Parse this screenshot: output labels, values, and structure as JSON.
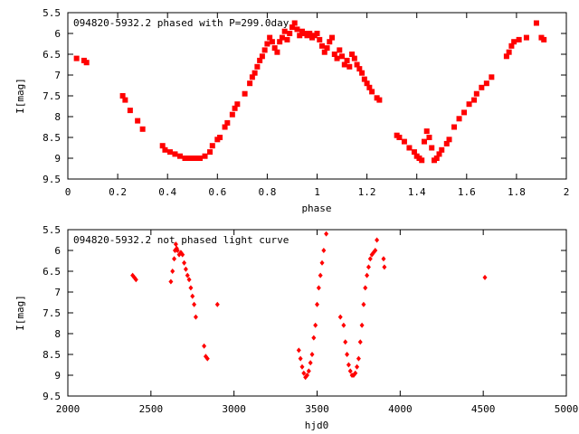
{
  "chart_data": [
    {
      "type": "scatter",
      "title": "094820-5932.2 phased with P=299.0day",
      "xlabel": "phase",
      "ylabel": "I[mag]",
      "xlim": [
        0,
        2
      ],
      "ylim": [
        5.5,
        9.5
      ],
      "y_inverted": true,
      "xticks": [
        "0",
        "0.2",
        "0.4",
        "0.6",
        "0.8",
        "1",
        "1.2",
        "1.4",
        "1.6",
        "1.8",
        "2"
      ],
      "yticks": [
        "5.5",
        "6",
        "6.5",
        "7",
        "7.5",
        "8",
        "8.5",
        "9",
        "9.5"
      ],
      "grid": false,
      "marker": "filled-square",
      "color": "#ff0000",
      "points": [
        [
          0.035,
          6.6
        ],
        [
          0.065,
          6.65
        ],
        [
          0.075,
          6.7
        ],
        [
          0.22,
          7.5
        ],
        [
          0.23,
          7.6
        ],
        [
          0.25,
          7.85
        ],
        [
          0.28,
          8.1
        ],
        [
          0.3,
          8.3
        ],
        [
          0.38,
          8.7
        ],
        [
          0.39,
          8.8
        ],
        [
          0.41,
          8.85
        ],
        [
          0.43,
          8.9
        ],
        [
          0.45,
          8.95
        ],
        [
          0.47,
          9.0
        ],
        [
          0.49,
          9.0
        ],
        [
          0.51,
          9.0
        ],
        [
          0.53,
          9.0
        ],
        [
          0.55,
          8.95
        ],
        [
          0.57,
          8.85
        ],
        [
          0.58,
          8.7
        ],
        [
          0.6,
          8.55
        ],
        [
          0.61,
          8.5
        ],
        [
          0.63,
          8.25
        ],
        [
          0.64,
          8.15
        ],
        [
          0.66,
          7.95
        ],
        [
          0.67,
          7.8
        ],
        [
          0.68,
          7.7
        ],
        [
          0.71,
          7.45
        ],
        [
          0.73,
          7.2
        ],
        [
          0.74,
          7.05
        ],
        [
          0.75,
          6.95
        ],
        [
          0.76,
          6.8
        ],
        [
          0.77,
          6.65
        ],
        [
          0.78,
          6.55
        ],
        [
          0.79,
          6.4
        ],
        [
          0.8,
          6.25
        ],
        [
          0.81,
          6.1
        ],
        [
          0.82,
          6.2
        ],
        [
          0.83,
          6.35
        ],
        [
          0.84,
          6.45
        ],
        [
          0.85,
          6.2
        ],
        [
          0.86,
          6.1
        ],
        [
          0.87,
          5.95
        ],
        [
          0.88,
          6.15
        ],
        [
          0.89,
          6.0
        ],
        [
          0.9,
          5.85
        ],
        [
          0.91,
          5.75
        ],
        [
          0.92,
          5.9
        ],
        [
          0.93,
          6.05
        ],
        [
          0.94,
          5.95
        ],
        [
          0.95,
          6.0
        ],
        [
          0.96,
          6.05
        ],
        [
          0.97,
          6.0
        ],
        [
          0.98,
          6.1
        ],
        [
          0.99,
          6.05
        ],
        [
          1.0,
          6.0
        ],
        [
          1.01,
          6.15
        ],
        [
          1.02,
          6.3
        ],
        [
          1.03,
          6.45
        ],
        [
          1.04,
          6.35
        ],
        [
          1.05,
          6.2
        ],
        [
          1.06,
          6.1
        ],
        [
          1.07,
          6.5
        ],
        [
          1.08,
          6.6
        ],
        [
          1.09,
          6.4
        ],
        [
          1.1,
          6.55
        ],
        [
          1.11,
          6.75
        ],
        [
          1.12,
          6.65
        ],
        [
          1.13,
          6.8
        ],
        [
          1.14,
          6.5
        ],
        [
          1.15,
          6.6
        ],
        [
          1.16,
          6.75
        ],
        [
          1.17,
          6.85
        ],
        [
          1.18,
          6.95
        ],
        [
          1.19,
          7.1
        ],
        [
          1.2,
          7.2
        ],
        [
          1.21,
          7.3
        ],
        [
          1.22,
          7.4
        ],
        [
          1.24,
          7.55
        ],
        [
          1.25,
          7.6
        ],
        [
          1.32,
          8.45
        ],
        [
          1.33,
          8.5
        ],
        [
          1.35,
          8.6
        ],
        [
          1.37,
          8.75
        ],
        [
          1.39,
          8.85
        ],
        [
          1.4,
          8.95
        ],
        [
          1.41,
          9.0
        ],
        [
          1.42,
          9.05
        ],
        [
          1.43,
          8.6
        ],
        [
          1.44,
          8.35
        ],
        [
          1.45,
          8.5
        ],
        [
          1.46,
          8.75
        ],
        [
          1.47,
          9.05
        ],
        [
          1.48,
          9.0
        ],
        [
          1.49,
          8.9
        ],
        [
          1.5,
          8.8
        ],
        [
          1.52,
          8.65
        ],
        [
          1.53,
          8.55
        ],
        [
          1.55,
          8.25
        ],
        [
          1.57,
          8.05
        ],
        [
          1.59,
          7.9
        ],
        [
          1.61,
          7.7
        ],
        [
          1.63,
          7.6
        ],
        [
          1.64,
          7.45
        ],
        [
          1.66,
          7.3
        ],
        [
          1.68,
          7.2
        ],
        [
          1.7,
          7.05
        ],
        [
          1.76,
          6.55
        ],
        [
          1.77,
          6.45
        ],
        [
          1.78,
          6.3
        ],
        [
          1.79,
          6.2
        ],
        [
          1.81,
          6.15
        ],
        [
          1.84,
          6.1
        ],
        [
          1.88,
          5.75
        ],
        [
          1.9,
          6.1
        ],
        [
          1.91,
          6.15
        ]
      ]
    },
    {
      "type": "scatter",
      "title": "094820-5932.2 not phased light curve",
      "xlabel": "hjd0",
      "ylabel": "I[mag]",
      "xlim": [
        2000,
        5000
      ],
      "ylim": [
        5.5,
        9.5
      ],
      "y_inverted": true,
      "xticks": [
        "2000",
        "2500",
        "3000",
        "3500",
        "4000",
        "4500",
        "5000"
      ],
      "yticks": [
        "5.5",
        "6",
        "6.5",
        "7",
        "7.5",
        "8",
        "8.5",
        "9",
        "9.5"
      ],
      "grid": false,
      "marker": "filled-diamond",
      "color": "#ff0000",
      "points": [
        [
          2390,
          6.6
        ],
        [
          2400,
          6.65
        ],
        [
          2410,
          6.7
        ],
        [
          2620,
          6.75
        ],
        [
          2630,
          6.5
        ],
        [
          2640,
          6.2
        ],
        [
          2645,
          6.0
        ],
        [
          2650,
          5.85
        ],
        [
          2655,
          5.95
        ],
        [
          2660,
          6.0
        ],
        [
          2670,
          6.1
        ],
        [
          2680,
          6.05
        ],
        [
          2690,
          6.1
        ],
        [
          2700,
          6.3
        ],
        [
          2710,
          6.45
        ],
        [
          2720,
          6.6
        ],
        [
          2730,
          6.7
        ],
        [
          2740,
          6.9
        ],
        [
          2750,
          7.1
        ],
        [
          2760,
          7.3
        ],
        [
          2770,
          7.6
        ],
        [
          2820,
          8.3
        ],
        [
          2830,
          8.55
        ],
        [
          2840,
          8.6
        ],
        [
          2900,
          7.3
        ],
        [
          3390,
          8.4
        ],
        [
          3400,
          8.6
        ],
        [
          3410,
          8.8
        ],
        [
          3420,
          8.95
        ],
        [
          3430,
          9.05
        ],
        [
          3440,
          9.0
        ],
        [
          3450,
          8.9
        ],
        [
          3460,
          8.7
        ],
        [
          3470,
          8.5
        ],
        [
          3480,
          8.1
        ],
        [
          3490,
          7.8
        ],
        [
          3500,
          7.3
        ],
        [
          3510,
          6.9
        ],
        [
          3520,
          6.6
        ],
        [
          3530,
          6.3
        ],
        [
          3540,
          6.0
        ],
        [
          3555,
          5.6
        ],
        [
          3640,
          7.6
        ],
        [
          3660,
          7.8
        ],
        [
          3670,
          8.2
        ],
        [
          3680,
          8.5
        ],
        [
          3690,
          8.75
        ],
        [
          3700,
          8.9
        ],
        [
          3710,
          9.0
        ],
        [
          3720,
          9.0
        ],
        [
          3730,
          8.95
        ],
        [
          3740,
          8.8
        ],
        [
          3750,
          8.6
        ],
        [
          3760,
          8.2
        ],
        [
          3770,
          7.8
        ],
        [
          3780,
          7.3
        ],
        [
          3790,
          6.9
        ],
        [
          3800,
          6.6
        ],
        [
          3810,
          6.4
        ],
        [
          3820,
          6.2
        ],
        [
          3830,
          6.1
        ],
        [
          3840,
          6.05
        ],
        [
          3850,
          6.0
        ],
        [
          3860,
          5.75
        ],
        [
          3900,
          6.2
        ],
        [
          3905,
          6.4
        ],
        [
          4510,
          6.65
        ]
      ]
    }
  ]
}
